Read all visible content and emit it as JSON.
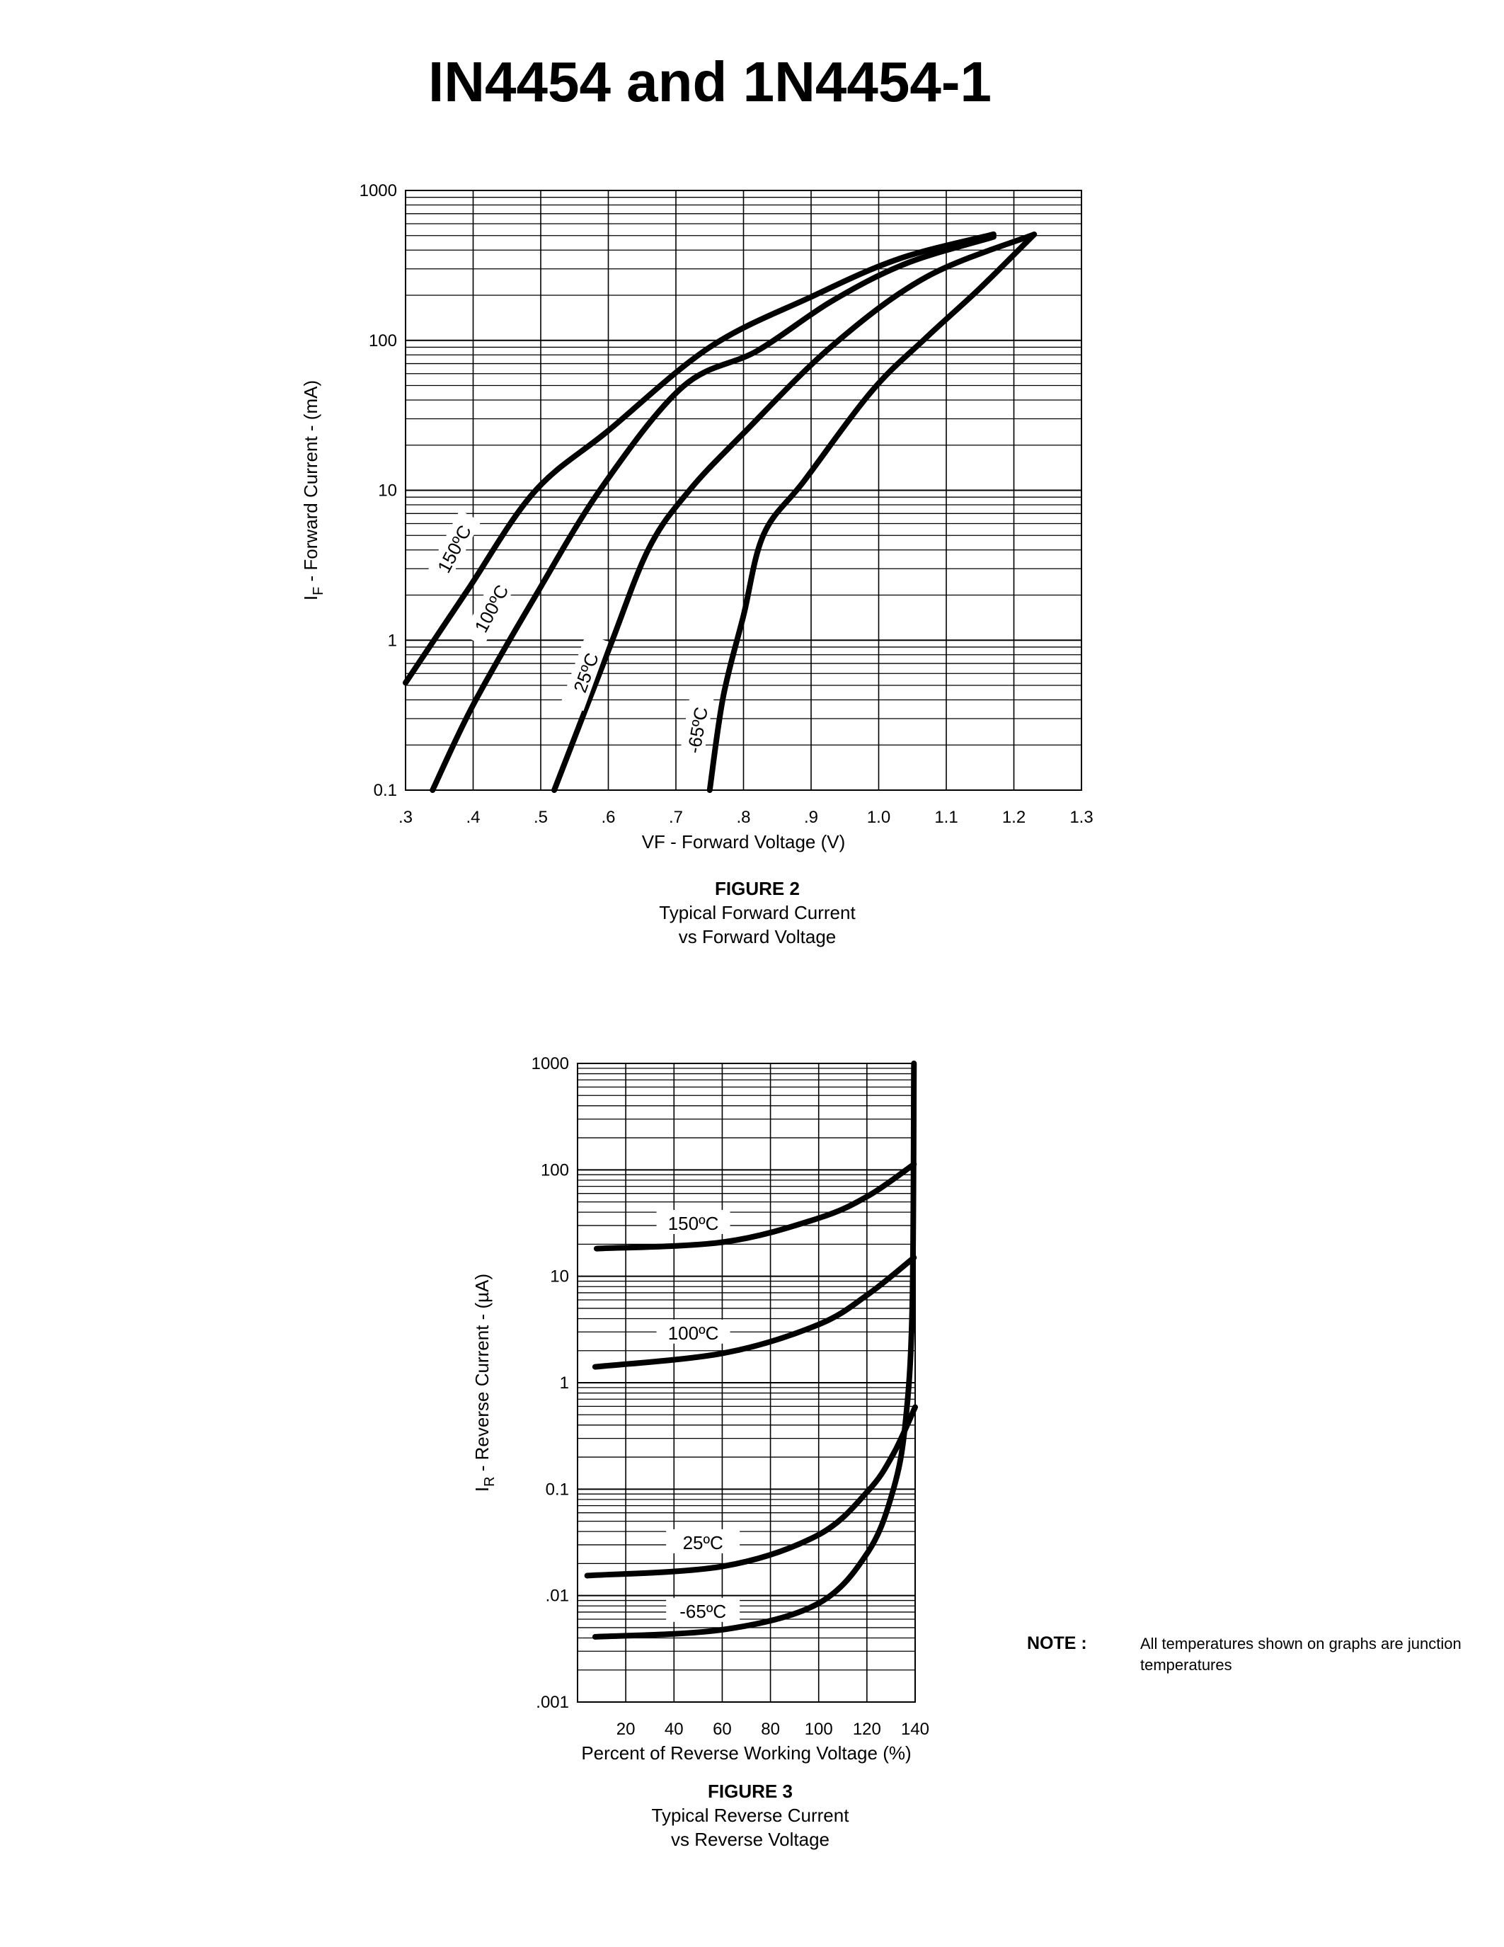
{
  "title": "IN4454 and 1N4454-1",
  "note": {
    "label": "NOTE :",
    "text": "All temperatures shown on graphs are junction temperatures"
  },
  "chart_data": [
    {
      "type": "line",
      "figure_label": "FIGURE 2",
      "caption_line1": "Typical Forward Current",
      "caption_line2": "vs Forward Voltage",
      "xlabel": "VF - Forward Voltage (V)",
      "ylabel_symbol": "I",
      "ylabel_subscript": "F",
      "ylabel_text": " - Forward Current - (mA)",
      "xscale": "linear",
      "yscale": "log",
      "xlim": [
        0.3,
        1.3
      ],
      "ylim": [
        0.1,
        1000
      ],
      "xticks": [
        ".3",
        ".4",
        ".5",
        ".6",
        ".7",
        ".8",
        ".9",
        "1.0",
        "1.1",
        "1.2",
        "1.3"
      ],
      "yticks": [
        "0.1",
        "1",
        "10",
        "100",
        "1000"
      ],
      "grid": true,
      "series": [
        {
          "name": "150ºC",
          "points": [
            [
              0.3,
              0.52
            ],
            [
              0.39,
              2.1
            ],
            [
              0.49,
              9.7
            ],
            [
              0.6,
              25
            ],
            [
              0.75,
              90
            ],
            [
              0.9,
              195
            ],
            [
              1.03,
              350
            ],
            [
              1.17,
              510
            ]
          ]
        },
        {
          "name": "100ºC",
          "points": [
            [
              0.34,
              0.1
            ],
            [
              0.4,
              0.37
            ],
            [
              0.49,
              1.9
            ],
            [
              0.59,
              10.4
            ],
            [
              0.71,
              49
            ],
            [
              0.82,
              85
            ],
            [
              0.93,
              182
            ],
            [
              1.04,
              325
            ],
            [
              1.17,
              490
            ]
          ]
        },
        {
          "name": "25ºC",
          "points": [
            [
              0.52,
              0.1
            ],
            [
              0.6,
              0.85
            ],
            [
              0.66,
              4.1
            ],
            [
              0.72,
              10
            ],
            [
              0.8,
              24
            ],
            [
              0.93,
              91
            ],
            [
              1.07,
              264
            ],
            [
              1.23,
              509
            ]
          ]
        },
        {
          "name": "-65ºC",
          "points": [
            [
              0.75,
              0.1
            ],
            [
              0.77,
              0.42
            ],
            [
              0.8,
              1.46
            ],
            [
              0.83,
              5.1
            ],
            [
              0.89,
              11.6
            ],
            [
              0.99,
              46
            ],
            [
              1.07,
              104
            ],
            [
              1.15,
              223
            ],
            [
              1.23,
              509
            ]
          ]
        }
      ]
    },
    {
      "type": "line",
      "figure_label": "FIGURE 3",
      "caption_line1": "Typical Reverse Current",
      "caption_line2": "vs Reverse Voltage",
      "xlabel": "Percent of Reverse Working Voltage (%)",
      "ylabel_symbol": "I",
      "ylabel_subscript": "R",
      "ylabel_text": " - Reverse Current - (µA)",
      "xscale": "linear",
      "yscale": "log",
      "xlim": [
        0,
        140
      ],
      "ylim": [
        0.001,
        1000
      ],
      "xticks": [
        "20",
        "40",
        "60",
        "80",
        "100",
        "120",
        "140"
      ],
      "yticks": [
        ".001",
        ".01",
        "0.1",
        "1",
        "10",
        "100",
        "1000"
      ],
      "grid": true,
      "series": [
        {
          "name": "150ºC",
          "points": [
            [
              7.9,
              18.2
            ],
            [
              60.7,
              21
            ],
            [
              99.7,
              35
            ],
            [
              120.6,
              57
            ],
            [
              139.5,
              113
            ]
          ]
        },
        {
          "name": "100ºC",
          "points": [
            [
              7.3,
              1.41
            ],
            [
              60.7,
              1.9
            ],
            [
              99.7,
              3.5
            ],
            [
              120.6,
              6.8
            ],
            [
              139.5,
              15
            ]
          ]
        },
        {
          "name": "25ºC",
          "points": [
            [
              4,
              0.0154
            ],
            [
              60.7,
              0.0189
            ],
            [
              99.7,
              0.037
            ],
            [
              120.6,
              0.097
            ],
            [
              131,
              0.215
            ],
            [
              140,
              0.59
            ]
          ]
        },
        {
          "name": "-65ºC",
          "points": [
            [
              7.3,
              0.0041
            ],
            [
              60.7,
              0.0048
            ],
            [
              99.7,
              0.0084
            ],
            [
              120.6,
              0.026
            ],
            [
              131,
              0.1
            ],
            [
              136,
              0.43
            ],
            [
              138.8,
              5.2
            ],
            [
              139.5,
              1000
            ]
          ]
        }
      ]
    }
  ]
}
